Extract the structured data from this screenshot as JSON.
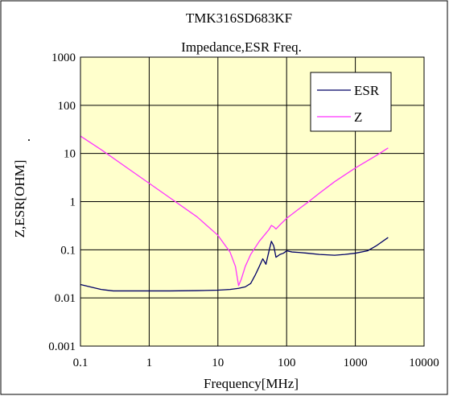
{
  "chart_data": {
    "type": "line",
    "title": "TMK316SD683KF",
    "subtitle": "Impedance,ESR Freq.",
    "xlabel": "Frequency[MHz]",
    "ylabel": "Z,ESR[OHM]",
    "ylabel_suffix": ".",
    "x_scale": "log",
    "y_scale": "log",
    "xlim": [
      0.1,
      10000
    ],
    "ylim": [
      0.001,
      1000
    ],
    "x_ticks": [
      0.1,
      1,
      10,
      100,
      1000,
      10000
    ],
    "x_tick_labels": [
      "0.1",
      "1",
      "10",
      "100",
      "1000",
      "10000"
    ],
    "y_ticks": [
      0.001,
      0.01,
      0.1,
      1,
      10,
      100,
      1000
    ],
    "y_tick_labels": [
      "0.001",
      "0.01",
      "0.1",
      "1",
      "10",
      "100",
      "1000"
    ],
    "grid": true,
    "legend_position": "top-right",
    "background_color": "#ffffcc",
    "series": [
      {
        "name": "ESR",
        "color": "#000066",
        "x": [
          0.1,
          0.15,
          0.2,
          0.3,
          0.5,
          1,
          2,
          5,
          10,
          15,
          20,
          25,
          30,
          35,
          40,
          45,
          50,
          55,
          60,
          65,
          70,
          75,
          80,
          90,
          100,
          120,
          150,
          200,
          300,
          500,
          700,
          1000,
          1500,
          2000,
          3000
        ],
        "y": [
          0.019,
          0.0165,
          0.015,
          0.014,
          0.014,
          0.014,
          0.014,
          0.0142,
          0.0145,
          0.015,
          0.0158,
          0.017,
          0.02,
          0.03,
          0.045,
          0.065,
          0.05,
          0.09,
          0.15,
          0.12,
          0.07,
          0.075,
          0.08,
          0.085,
          0.095,
          0.09,
          0.088,
          0.085,
          0.08,
          0.077,
          0.08,
          0.085,
          0.095,
          0.12,
          0.18
        ]
      },
      {
        "name": "Z",
        "color": "#ff33ff",
        "x": [
          0.1,
          0.2,
          0.5,
          1,
          2,
          5,
          10,
          15,
          18,
          20,
          22,
          25,
          30,
          40,
          50,
          55,
          60,
          65,
          70,
          80,
          100,
          150,
          200,
          300,
          500,
          1000,
          2000,
          3000
        ],
        "y": [
          23,
          12,
          4.8,
          2.4,
          1.2,
          0.48,
          0.2,
          0.09,
          0.045,
          0.018,
          0.025,
          0.045,
          0.08,
          0.15,
          0.22,
          0.26,
          0.32,
          0.3,
          0.27,
          0.33,
          0.45,
          0.7,
          0.95,
          1.5,
          2.6,
          5,
          9,
          13
        ]
      }
    ]
  }
}
